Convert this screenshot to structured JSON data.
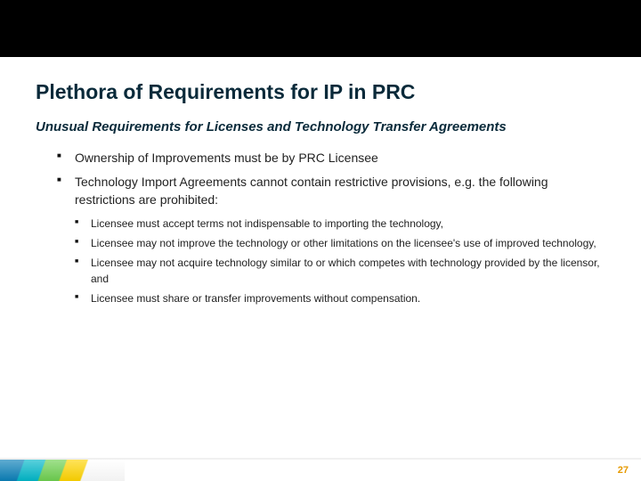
{
  "title": "Plethora of Requirements for IP in PRC",
  "subtitle": "Unusual Requirements for Licenses and Technology Transfer Agreements",
  "bullets": [
    {
      "text": "Ownership of Improvements must be by PRC Licensee"
    },
    {
      "text": "Technology Import Agreements cannot contain restrictive provisions, e.g. the following restrictions are prohibited:"
    }
  ],
  "subbullets": [
    {
      "text": "Licensee must accept terms not indispensable to importing the technology,"
    },
    {
      "text": "Licensee may not improve the technology or other limitations on the licensee's use of improved technology,"
    },
    {
      "text": "Licensee may not acquire technology similar to or which competes with technology provided by the licensor, and"
    },
    {
      "text": "Licensee must share or transfer improvements without compensation."
    }
  ],
  "page_number": "27",
  "colors": {
    "title_color": "#0a2a3a",
    "text_color": "#222222",
    "page_number_color": "#e69a00",
    "background": "#ffffff",
    "topbar": "#000000"
  }
}
